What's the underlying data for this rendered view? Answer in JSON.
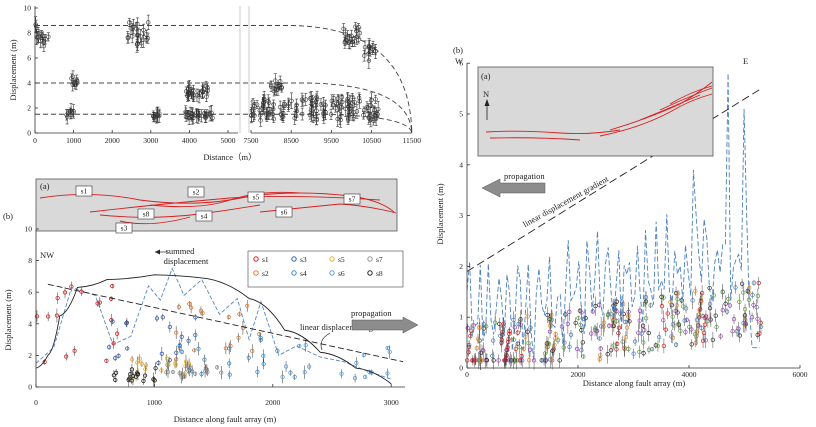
{
  "colors": {
    "trace_red": "#d62020",
    "inset_bg": "#d9d9d9",
    "series_blue": "#4a7fc1",
    "arrow_gray": "#8c8c8c"
  },
  "chart_data": [
    {
      "id": "top-left",
      "type": "scatter",
      "xlabel": "Distance（m）",
      "ylabel": "Displacement (m)",
      "xticks_left": [
        "0",
        "1000",
        "2000",
        "3000",
        "4000",
        "5000"
      ],
      "xticks_right": [
        "7500",
        "8500",
        "9500",
        "10500",
        "11500"
      ],
      "yticks": [
        "0",
        "2",
        "4",
        "6",
        "8",
        "10"
      ],
      "ylim": [
        0,
        10
      ],
      "clusters": [
        {
          "x_range": [
            0,
            350
          ],
          "y_range": [
            6.8,
            8.8
          ]
        },
        {
          "x_range": [
            2400,
            2950
          ],
          "y_range": [
            6.9,
            9.0
          ]
        },
        {
          "x_range": [
            9800,
            10250
          ],
          "y_range": [
            7.2,
            8.7
          ]
        },
        {
          "x_range": [
            10300,
            10600
          ],
          "y_range": [
            5.7,
            7.0
          ]
        },
        {
          "x_range": [
            900,
            1100
          ],
          "y_range": [
            3.7,
            4.6
          ]
        },
        {
          "x_range": [
            3900,
            4500
          ],
          "y_range": [
            2.8,
            3.8
          ]
        },
        {
          "x_range": [
            8000,
            8300
          ],
          "y_range": [
            3.3,
            4.2
          ]
        },
        {
          "x_range": [
            800,
            1000
          ],
          "y_range": [
            1.3,
            1.8
          ]
        },
        {
          "x_range": [
            3050,
            3300
          ],
          "y_range": [
            1.2,
            1.7
          ]
        },
        {
          "x_range": [
            3900,
            4600
          ],
          "y_range": [
            1.2,
            1.7
          ]
        },
        {
          "x_range": [
            7500,
            10700
          ],
          "y_range": [
            1.0,
            2.9
          ]
        }
      ],
      "fits": [
        {
          "start": 8.6,
          "x_knee": 9500
        },
        {
          "start": 4.0,
          "x_knee": 9900
        },
        {
          "start": 1.5,
          "x_knee": 10300
        }
      ]
    },
    {
      "id": "bottom-left",
      "type": "scatter",
      "panel_label": "(b)",
      "inset_label": "(a)",
      "xlabel": "Distance along fault array (m)",
      "ylabel": "Displacement (m)",
      "xticks": [
        "0",
        "1000",
        "2000",
        "3000"
      ],
      "yticks": [
        "0",
        "2",
        "4",
        "6",
        "8",
        "10"
      ],
      "xlim": [
        0,
        3200
      ],
      "ylim": [
        0,
        10
      ],
      "nw_label": "NW",
      "se_label": "SE",
      "segment_labels": [
        "s1",
        "s2",
        "s3",
        "s4",
        "s5",
        "s6",
        "s7",
        "s8"
      ],
      "legend": [
        {
          "label": "s1",
          "color": "#d62020"
        },
        {
          "label": "s2",
          "color": "#e07a3a"
        },
        {
          "label": "s3",
          "color": "#3a5fb0"
        },
        {
          "label": "s4",
          "color": "#3a8fd0"
        },
        {
          "label": "s5",
          "color": "#e6b030"
        },
        {
          "label": "s6",
          "color": "#5a9fe0"
        },
        {
          "label": "s7",
          "color": "#909090"
        },
        {
          "label": "s8",
          "color": "#222222"
        }
      ],
      "annotations": {
        "summed": [
          "summed",
          "displacement"
        ],
        "gradient": "linear displacement gradient",
        "propagation": "propagation"
      }
    },
    {
      "id": "right",
      "type": "line",
      "panel_label": "(b)",
      "inset_label": "(a)",
      "w_label": "W",
      "e_label": "E",
      "north_label": "N",
      "xlabel": "Distance along fault array (m)",
      "ylabel": "Displacement (m)",
      "xticks": [
        "0",
        "2000",
        "4000",
        "6000"
      ],
      "yticks": [
        "0",
        "1",
        "2",
        "3",
        "4",
        "5",
        "6"
      ],
      "xlim": [
        0,
        6000
      ],
      "ylim": [
        0,
        6
      ],
      "annotations": {
        "gradient": "linear displacement gradient",
        "propagation": "propagation"
      }
    }
  ]
}
